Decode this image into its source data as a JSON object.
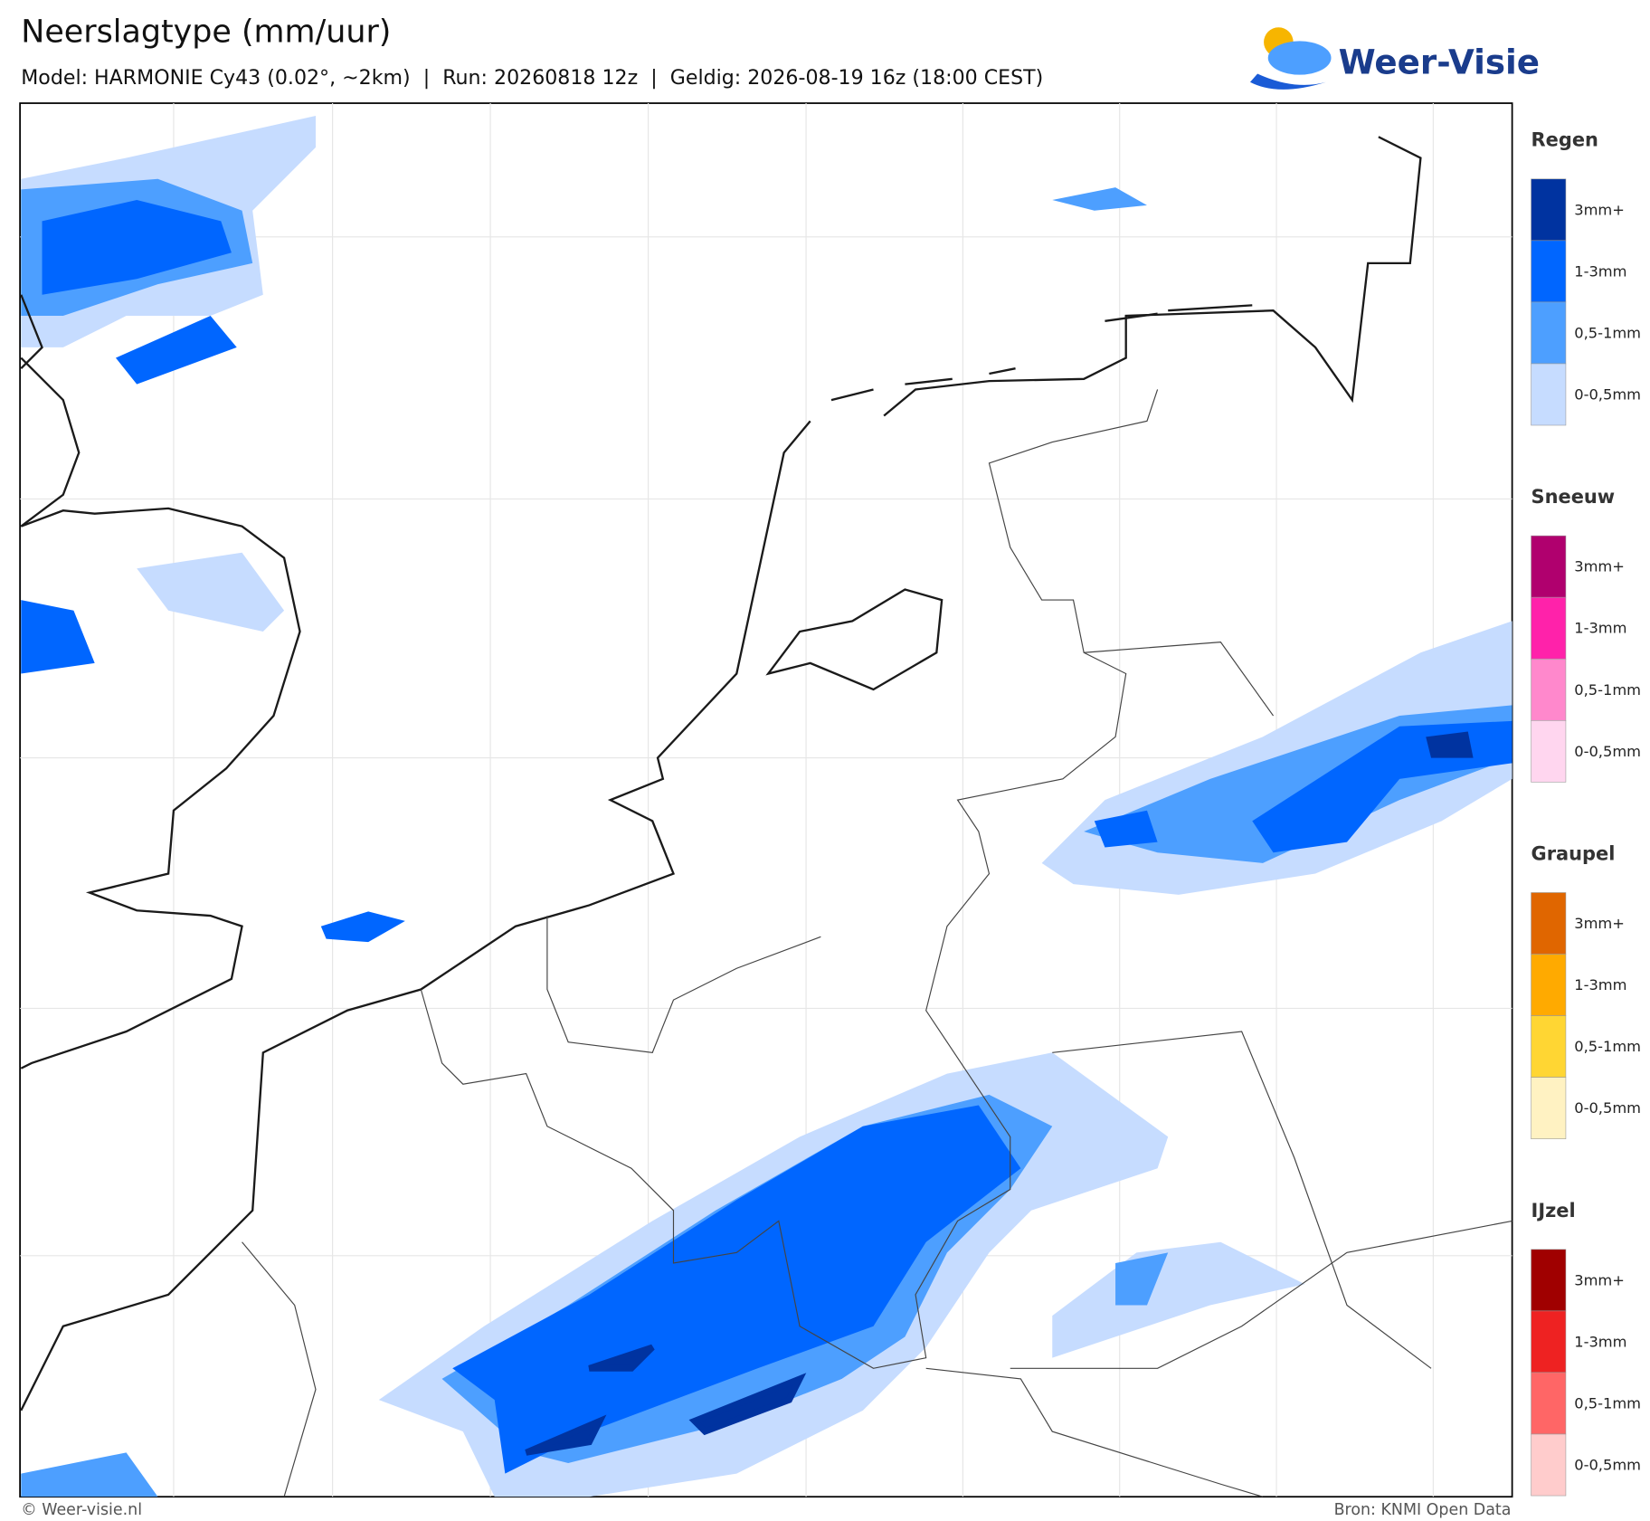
{
  "header": {
    "title": "Neerslagtype (mm/uur)",
    "subtitle": "Model: HARMONIE Cy43 (0.02°, ~2km)  |  Run: 20260818 12z  |  Geldig: 2026-08-19 16z (18:00 CEST)",
    "logo": "Weer-Visie"
  },
  "legend": [
    {
      "title": "Regen",
      "items": [
        {
          "label": "3mm+",
          "color": "#0033a0"
        },
        {
          "label": "1-3mm",
          "color": "#0066ff"
        },
        {
          "label": "0,5-1mm",
          "color": "#4d9fff"
        },
        {
          "label": "0-0,5mm",
          "color": "#c6dcff"
        }
      ]
    },
    {
      "title": "Sneeuw",
      "items": [
        {
          "label": "3mm+",
          "color": "#b0006e"
        },
        {
          "label": "1-3mm",
          "color": "#ff22aa"
        },
        {
          "label": "0,5-1mm",
          "color": "#ff88cc"
        },
        {
          "label": "0-0,5mm",
          "color": "#ffd6ef"
        }
      ]
    },
    {
      "title": "Graupel",
      "items": [
        {
          "label": "3mm+",
          "color": "#e06600"
        },
        {
          "label": "1-3mm",
          "color": "#ffaa00"
        },
        {
          "label": "0,5-1mm",
          "color": "#ffd633"
        },
        {
          "label": "0-0,5mm",
          "color": "#fff2c2"
        }
      ]
    },
    {
      "title": "IJzel",
      "items": [
        {
          "label": "3mm+",
          "color": "#a00000"
        },
        {
          "label": "1-3mm",
          "color": "#ee2222"
        },
        {
          "label": "0,5-1mm",
          "color": "#ff6666"
        },
        {
          "label": "0-0,5mm",
          "color": "#ffcccc"
        }
      ]
    }
  ],
  "footer": {
    "copyright": "© Weer-visie.nl",
    "source": "Bron: KNMI Open Data"
  }
}
